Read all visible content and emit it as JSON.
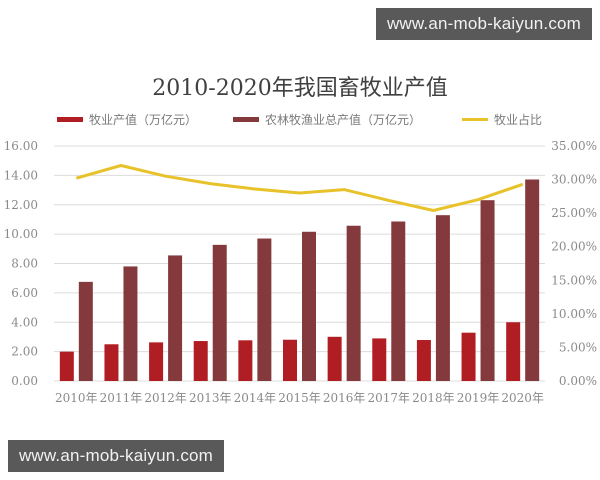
{
  "watermarks": {
    "top": "www.an-mob-kaiyun.com",
    "bottom": "www.an-mob-kaiyun.com"
  },
  "colors": {
    "livestock_bar": "#b01d22",
    "total_bar": "#843a3d",
    "share_line": "#e8c22a",
    "grid": "#dcdcdc",
    "axis_text": "#8a8a8a",
    "title": "#404040"
  },
  "chart_data": {
    "type": "bar",
    "title": "2010-2020年我国畜牧业产值",
    "xlabel": "",
    "ylabel": "",
    "categories": [
      "2010年",
      "2011年",
      "2012年",
      "2013年",
      "2014年",
      "2015年",
      "2016年",
      "2017年",
      "2018年",
      "2019年",
      "2020年"
    ],
    "series": [
      {
        "name": "牧业产值（万亿元）",
        "type": "bar",
        "axis": "left",
        "values": [
          2.0,
          2.5,
          2.63,
          2.72,
          2.77,
          2.81,
          3.01,
          2.9,
          2.79,
          3.29,
          4.0
        ]
      },
      {
        "name": "农林牧渔业总产值（万亿元）",
        "type": "bar",
        "axis": "left",
        "values": [
          6.75,
          7.8,
          8.55,
          9.27,
          9.7,
          10.16,
          10.57,
          10.86,
          11.29,
          12.31,
          13.72
        ]
      },
      {
        "name": "牧业占比",
        "type": "line",
        "axis": "right",
        "values": [
          30.2,
          32.1,
          30.5,
          29.4,
          28.6,
          28.0,
          28.5,
          26.9,
          25.4,
          27.0,
          29.3
        ]
      }
    ],
    "left_axis": {
      "ylim": [
        0,
        16
      ],
      "ticks": [
        "0.00",
        "2.00",
        "4.00",
        "6.00",
        "8.00",
        "10.00",
        "12.00",
        "14.00",
        "16.00"
      ]
    },
    "right_axis": {
      "ylim": [
        0,
        35
      ],
      "ticks": [
        "0.00%",
        "5.00%",
        "10.00%",
        "15.00%",
        "20.00%",
        "25.00%",
        "30.00%",
        "35.00%"
      ]
    },
    "grid": true,
    "legend_position": "top"
  }
}
